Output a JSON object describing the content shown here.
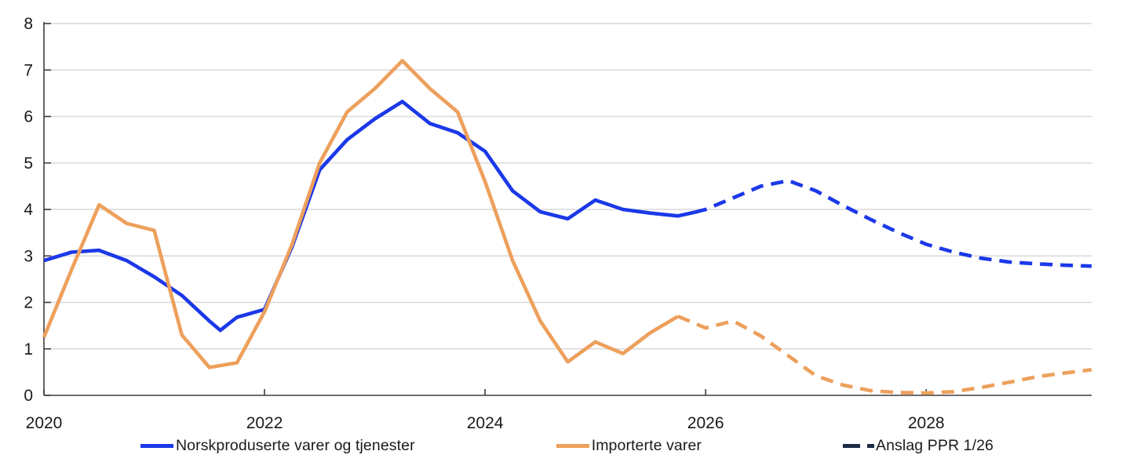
{
  "chart_data": {
    "type": "line",
    "title": "",
    "xlabel": "",
    "ylabel": "",
    "x_axis": {
      "range": [
        2020,
        2029.5
      ],
      "tick_values": [
        2020,
        2022,
        2024,
        2026,
        2028
      ],
      "tick_labels": [
        "2020",
        "2022",
        "2024",
        "2026",
        "2028"
      ]
    },
    "y_axis": {
      "range": [
        0,
        8
      ],
      "tick_values": [
        0,
        1,
        2,
        3,
        4,
        5,
        6,
        7,
        8
      ],
      "tick_labels": [
        "0",
        "1",
        "2",
        "3",
        "4",
        "5",
        "6",
        "7",
        "8"
      ]
    },
    "grid": "horizontal",
    "legend_position": "bottom",
    "colors": {
      "blue": "#1b38e8",
      "orange": "#eda05c",
      "navy": "#1c2b45",
      "grid": "#d9d9d9",
      "axis": "#3d3d3d",
      "text": "#1a1a1a"
    },
    "series": [
      {
        "id": "norskproduserte-solid",
        "legend_label": "Norskproduserte varer og tjenester",
        "color": "#1b38e8",
        "style": "solid",
        "points": [
          [
            2020.0,
            2.9
          ],
          [
            2020.25,
            3.08
          ],
          [
            2020.5,
            3.12
          ],
          [
            2020.75,
            2.9
          ],
          [
            2021.0,
            2.55
          ],
          [
            2021.25,
            2.15
          ],
          [
            2021.5,
            1.6
          ],
          [
            2021.6,
            1.4
          ],
          [
            2021.75,
            1.68
          ],
          [
            2022.0,
            1.85
          ],
          [
            2022.25,
            3.2
          ],
          [
            2022.5,
            4.85
          ],
          [
            2022.75,
            5.5
          ],
          [
            2023.0,
            5.95
          ],
          [
            2023.25,
            6.32
          ],
          [
            2023.5,
            5.85
          ],
          [
            2023.75,
            5.65
          ],
          [
            2024.0,
            5.25
          ],
          [
            2024.25,
            4.4
          ],
          [
            2024.5,
            3.95
          ],
          [
            2024.75,
            3.8
          ],
          [
            2025.0,
            4.2
          ],
          [
            2025.25,
            4.0
          ],
          [
            2025.5,
            3.92
          ],
          [
            2025.75,
            3.86
          ],
          [
            2025.9,
            3.94
          ]
        ]
      },
      {
        "id": "norskproduserte-anslag-dashed",
        "legend_label": "",
        "color": "#1b38e8",
        "style": "dashed",
        "points": [
          [
            2025.9,
            3.94
          ],
          [
            2026.0,
            4.0
          ],
          [
            2026.25,
            4.25
          ],
          [
            2026.5,
            4.5
          ],
          [
            2026.75,
            4.62
          ],
          [
            2027.0,
            4.4
          ],
          [
            2027.25,
            4.08
          ],
          [
            2027.5,
            3.78
          ],
          [
            2027.75,
            3.5
          ],
          [
            2028.0,
            3.25
          ],
          [
            2028.25,
            3.08
          ],
          [
            2028.5,
            2.95
          ],
          [
            2028.75,
            2.87
          ],
          [
            2029.0,
            2.83
          ],
          [
            2029.25,
            2.8
          ],
          [
            2029.5,
            2.78
          ]
        ]
      },
      {
        "id": "importerte-solid",
        "legend_label": "Importerte varer",
        "color": "#eda05c",
        "style": "solid",
        "points": [
          [
            2020.0,
            1.25
          ],
          [
            2020.25,
            2.7
          ],
          [
            2020.5,
            4.1
          ],
          [
            2020.75,
            3.7
          ],
          [
            2021.0,
            3.55
          ],
          [
            2021.25,
            1.3
          ],
          [
            2021.5,
            0.6
          ],
          [
            2021.75,
            0.7
          ],
          [
            2022.0,
            1.8
          ],
          [
            2022.25,
            3.25
          ],
          [
            2022.5,
            5.0
          ],
          [
            2022.75,
            6.1
          ],
          [
            2023.0,
            6.6
          ],
          [
            2023.25,
            7.2
          ],
          [
            2023.5,
            6.6
          ],
          [
            2023.75,
            6.1
          ],
          [
            2024.0,
            4.6
          ],
          [
            2024.25,
            2.9
          ],
          [
            2024.5,
            1.6
          ],
          [
            2024.75,
            0.72
          ],
          [
            2025.0,
            1.15
          ],
          [
            2025.25,
            0.9
          ],
          [
            2025.5,
            1.35
          ],
          [
            2025.75,
            1.7
          ]
        ]
      },
      {
        "id": "importerte-anslag-dashed",
        "legend_label": "",
        "color": "#eda05c",
        "style": "dashed",
        "points": [
          [
            2025.75,
            1.7
          ],
          [
            2026.0,
            1.45
          ],
          [
            2026.25,
            1.6
          ],
          [
            2026.5,
            1.28
          ],
          [
            2026.75,
            0.85
          ],
          [
            2027.0,
            0.42
          ],
          [
            2027.25,
            0.22
          ],
          [
            2027.5,
            0.1
          ],
          [
            2027.75,
            0.06
          ],
          [
            2028.0,
            0.05
          ],
          [
            2028.25,
            0.08
          ],
          [
            2028.5,
            0.17
          ],
          [
            2028.75,
            0.28
          ],
          [
            2029.0,
            0.4
          ],
          [
            2029.25,
            0.48
          ],
          [
            2029.5,
            0.55
          ]
        ]
      }
    ],
    "legend": [
      {
        "label": "Norskproduserte varer og tjenester",
        "color": "#1b38e8",
        "style": "solid"
      },
      {
        "label": "Importerte varer",
        "color": "#eda05c",
        "style": "solid"
      },
      {
        "label": "Anslag PPR 1/26",
        "color": "#1c2b45",
        "style": "dashed"
      }
    ]
  }
}
